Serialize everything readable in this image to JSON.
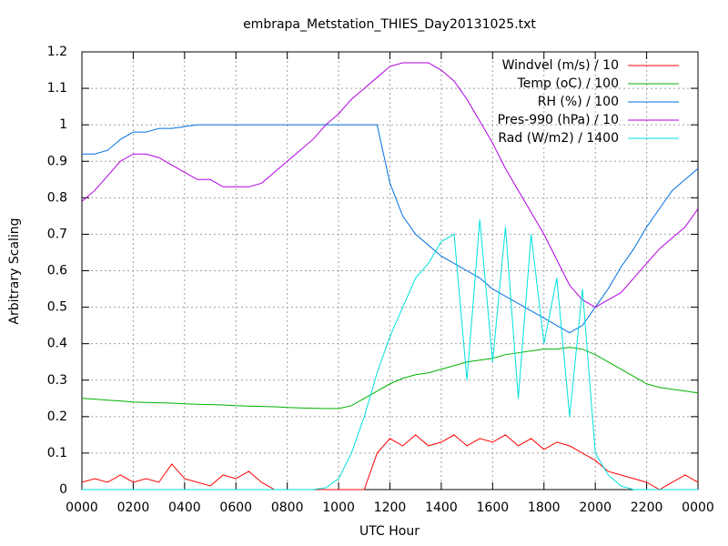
{
  "chart_data": {
    "type": "line",
    "title": "embrapa_Metstation_THIES_Day20131025.txt",
    "xlabel": "UTC Hour",
    "ylabel": "Arbitrary Scaling",
    "x": [
      0,
      0.5,
      1,
      1.5,
      2,
      2.5,
      3,
      3.5,
      4,
      4.5,
      5,
      5.5,
      6,
      6.5,
      7,
      7.5,
      8,
      8.5,
      9,
      9.5,
      10,
      10.5,
      11,
      11.5,
      12,
      12.5,
      13,
      13.5,
      14,
      14.5,
      15,
      15.5,
      16,
      16.5,
      17,
      17.5,
      18,
      18.5,
      19,
      19.5,
      20,
      20.5,
      21,
      21.5,
      22,
      22.5,
      23,
      23.5,
      24
    ],
    "series": [
      {
        "name": "Windvel (m/s) / 10",
        "color": "#ff0000",
        "values": [
          0.02,
          0.03,
          0.02,
          0.04,
          0.02,
          0.03,
          0.02,
          0.07,
          0.03,
          0.02,
          0.01,
          0.04,
          0.03,
          0.05,
          0.02,
          0,
          0,
          0,
          0,
          0,
          0,
          0,
          0,
          0.1,
          0.14,
          0.12,
          0.15,
          0.12,
          0.13,
          0.15,
          0.12,
          0.14,
          0.13,
          0.15,
          0.12,
          0.14,
          0.11,
          0.13,
          0.12,
          0.1,
          0.08,
          0.05,
          0.04,
          0.03,
          0.02,
          0,
          0.02,
          0.04,
          0.02
        ]
      },
      {
        "name": "Temp (oC) / 100",
        "color": "#00b000",
        "values": [
          0.25,
          0.248,
          0.245,
          0.243,
          0.24,
          0.239,
          0.238,
          0.237,
          0.235,
          0.234,
          0.233,
          0.232,
          0.23,
          0.229,
          0.228,
          0.227,
          0.225,
          0.224,
          0.223,
          0.222,
          0.222,
          0.23,
          0.25,
          0.27,
          0.29,
          0.305,
          0.315,
          0.32,
          0.33,
          0.34,
          0.35,
          0.355,
          0.36,
          0.37,
          0.375,
          0.38,
          0.385,
          0.385,
          0.39,
          0.385,
          0.37,
          0.35,
          0.33,
          0.31,
          0.29,
          0.28,
          0.275,
          0.27,
          0.265
        ]
      },
      {
        "name": "RH (%) / 100",
        "color": "#0070e0",
        "values": [
          0.92,
          0.92,
          0.93,
          0.96,
          0.98,
          0.98,
          0.99,
          0.99,
          0.995,
          1,
          1,
          1,
          1,
          1,
          1,
          1,
          1,
          1,
          1,
          1,
          1,
          1,
          1,
          1,
          0.84,
          0.75,
          0.7,
          0.67,
          0.64,
          0.62,
          0.6,
          0.58,
          0.55,
          0.53,
          0.51,
          0.49,
          0.47,
          0.45,
          0.43,
          0.45,
          0.5,
          0.55,
          0.61,
          0.66,
          0.72,
          0.77,
          0.82,
          0.85,
          0.88
        ]
      },
      {
        "name": "Pres-990 (hPa) / 10",
        "color": "#b000e0",
        "values": [
          0.79,
          0.82,
          0.86,
          0.9,
          0.92,
          0.92,
          0.91,
          0.89,
          0.87,
          0.85,
          0.85,
          0.83,
          0.83,
          0.83,
          0.84,
          0.87,
          0.9,
          0.93,
          0.96,
          1,
          1.03,
          1.07,
          1.1,
          1.13,
          1.16,
          1.17,
          1.17,
          1.17,
          1.15,
          1.12,
          1.07,
          1.01,
          0.95,
          0.88,
          0.82,
          0.76,
          0.7,
          0.63,
          0.56,
          0.52,
          0.5,
          0.52,
          0.54,
          0.58,
          0.62,
          0.66,
          0.69,
          0.72,
          0.77
        ]
      },
      {
        "name": "Rad (W/m2) / 1400",
        "color": "#00e0e0",
        "values": [
          0,
          0,
          0,
          0,
          0,
          0,
          0,
          0,
          0,
          0,
          0,
          0,
          0,
          0,
          0,
          0,
          0,
          0,
          0,
          0.005,
          0.03,
          0.1,
          0.2,
          0.32,
          0.42,
          0.5,
          0.58,
          0.62,
          0.68,
          0.7,
          0.3,
          0.74,
          0.35,
          0.72,
          0.25,
          0.7,
          0.4,
          0.58,
          0.2,
          0.55,
          0.1,
          0.04,
          0.01,
          0,
          0,
          0,
          0,
          0,
          0
        ]
      }
    ],
    "xlim": [
      0,
      24
    ],
    "xticks": [
      {
        "value": 0,
        "label": "0000"
      },
      {
        "value": 2,
        "label": "0200"
      },
      {
        "value": 4,
        "label": "0400"
      },
      {
        "value": 6,
        "label": "0600"
      },
      {
        "value": 8,
        "label": "0800"
      },
      {
        "value": 10,
        "label": "1000"
      },
      {
        "value": 12,
        "label": "1200"
      },
      {
        "value": 14,
        "label": "1400"
      },
      {
        "value": 16,
        "label": "1600"
      },
      {
        "value": 18,
        "label": "1800"
      },
      {
        "value": 20,
        "label": "2000"
      },
      {
        "value": 22,
        "label": "2200"
      },
      {
        "value": 24,
        "label": "0000"
      }
    ],
    "ylim": [
      0,
      1.2
    ],
    "yticks": [
      0,
      0.1,
      0.2,
      0.3,
      0.4,
      0.5,
      0.6,
      0.7,
      0.8,
      0.9,
      1,
      1.1,
      1.2
    ],
    "grid": true,
    "legend": "top-right"
  }
}
